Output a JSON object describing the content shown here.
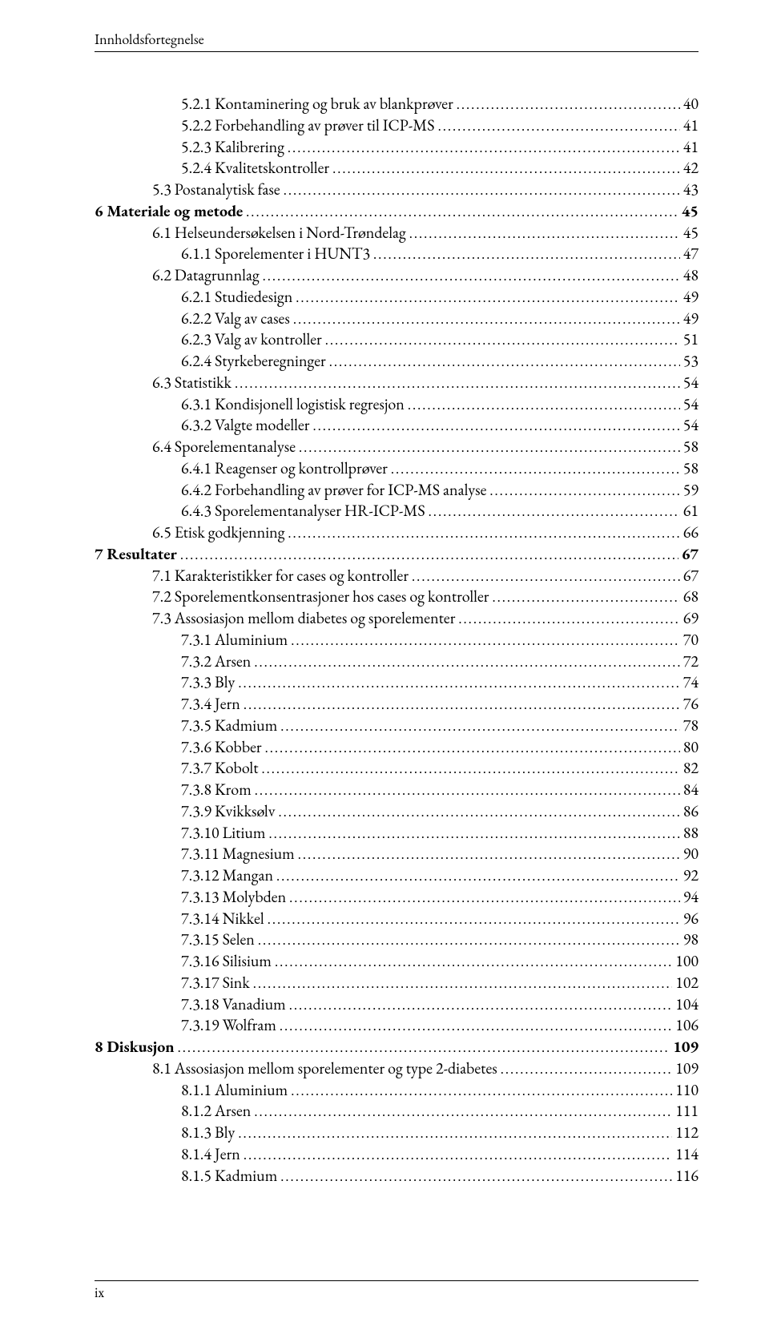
{
  "running_head": "Innholdsfortegnelse",
  "folio": "ix",
  "toc": [
    {
      "level": 3,
      "label": "5.2.1 Kontaminering og bruk av blankprøver",
      "page": "40"
    },
    {
      "level": 3,
      "label": "5.2.2 Forbehandling av prøver til ICP-MS",
      "page": "41"
    },
    {
      "level": 3,
      "label": "5.2.3 Kalibrering",
      "page": "41"
    },
    {
      "level": 3,
      "label": "5.2.4 Kvalitetskontroller",
      "page": "42"
    },
    {
      "level": 2,
      "label": "5.3 Postanalytisk fase",
      "page": "43"
    },
    {
      "level": 0,
      "label": "6 Materiale og metode",
      "page": "45"
    },
    {
      "level": 2,
      "label": "6.1 Helseundersøkelsen i Nord-Trøndelag",
      "page": "45"
    },
    {
      "level": 3,
      "label": "6.1.1 Sporelementer i HUNT3",
      "page": "47"
    },
    {
      "level": 2,
      "label": "6.2 Datagrunnlag",
      "page": "48"
    },
    {
      "level": 3,
      "label": "6.2.1 Studiedesign",
      "page": "49"
    },
    {
      "level": 3,
      "label": "6.2.2 Valg av cases",
      "page": "49"
    },
    {
      "level": 3,
      "label": "6.2.3 Valg av kontroller",
      "page": "51"
    },
    {
      "level": 3,
      "label": "6.2.4 Styrkeberegninger",
      "page": "53"
    },
    {
      "level": 2,
      "label": "6.3 Statistikk",
      "page": "54"
    },
    {
      "level": 3,
      "label": "6.3.1 Kondisjonell logistisk regresjon",
      "page": "54"
    },
    {
      "level": 3,
      "label": "6.3.2 Valgte modeller",
      "page": "54"
    },
    {
      "level": 2,
      "label": "6.4 Sporelementanalyse",
      "page": "58"
    },
    {
      "level": 3,
      "label": "6.4.1 Reagenser og kontrollprøver",
      "page": "58"
    },
    {
      "level": 3,
      "label": "6.4.2 Forbehandling av prøver for ICP-MS analyse",
      "page": "59"
    },
    {
      "level": 3,
      "label": "6.4.3 Sporelementanalyser HR-ICP-MS",
      "page": "61"
    },
    {
      "level": 2,
      "label": "6.5 Etisk godkjenning",
      "page": "66"
    },
    {
      "level": 0,
      "label": "7 Resultater",
      "page": "67"
    },
    {
      "level": 2,
      "label": "7.1 Karakteristikker for cases og kontroller",
      "page": "67"
    },
    {
      "level": 2,
      "label": "7.2 Sporelementkonsentrasjoner hos cases og kontroller",
      "page": "68"
    },
    {
      "level": 2,
      "label": "7.3 Assosiasjon mellom diabetes og sporelementer",
      "page": "69"
    },
    {
      "level": 3,
      "label": "7.3.1 Aluminium",
      "page": "70"
    },
    {
      "level": 3,
      "label": "7.3.2 Arsen",
      "page": "72"
    },
    {
      "level": 3,
      "label": "7.3.3 Bly",
      "page": "74"
    },
    {
      "level": 3,
      "label": "7.3.4 Jern",
      "page": "76"
    },
    {
      "level": 3,
      "label": "7.3.5 Kadmium",
      "page": "78"
    },
    {
      "level": 3,
      "label": "7.3.6 Kobber",
      "page": "80"
    },
    {
      "level": 3,
      "label": "7.3.7 Kobolt",
      "page": "82"
    },
    {
      "level": 3,
      "label": "7.3.8 Krom",
      "page": "84"
    },
    {
      "level": 3,
      "label": "7.3.9 Kvikksølv",
      "page": "86"
    },
    {
      "level": 3,
      "label": "7.3.10 Litium",
      "page": "88"
    },
    {
      "level": 3,
      "label": "7.3.11 Magnesium",
      "page": "90"
    },
    {
      "level": 3,
      "label": "7.3.12 Mangan",
      "page": "92"
    },
    {
      "level": 3,
      "label": "7.3.13 Molybden",
      "page": "94"
    },
    {
      "level": 3,
      "label": "7.3.14 Nikkel",
      "page": "96"
    },
    {
      "level": 3,
      "label": "7.3.15 Selen",
      "page": "98"
    },
    {
      "level": 3,
      "label": "7.3.16 Silisium",
      "page": "100"
    },
    {
      "level": 3,
      "label": "7.3.17 Sink",
      "page": "102"
    },
    {
      "level": 3,
      "label": "7.3.18 Vanadium",
      "page": "104"
    },
    {
      "level": 3,
      "label": "7.3.19 Wolfram",
      "page": "106"
    },
    {
      "level": 0,
      "label": "8 Diskusjon",
      "page": "109"
    },
    {
      "level": 2,
      "label": "8.1 Assosiasjon mellom sporelementer og type 2-diabetes",
      "page": "109"
    },
    {
      "level": 3,
      "label": "8.1.1 Aluminium",
      "page": "110"
    },
    {
      "level": 3,
      "label": "8.1.2 Arsen",
      "page": "111"
    },
    {
      "level": 3,
      "label": "8.1.3 Bly",
      "page": "112"
    },
    {
      "level": 3,
      "label": "8.1.4 Jern",
      "page": "114"
    },
    {
      "level": 3,
      "label": "8.1.5 Kadmium",
      "page": "116"
    }
  ]
}
